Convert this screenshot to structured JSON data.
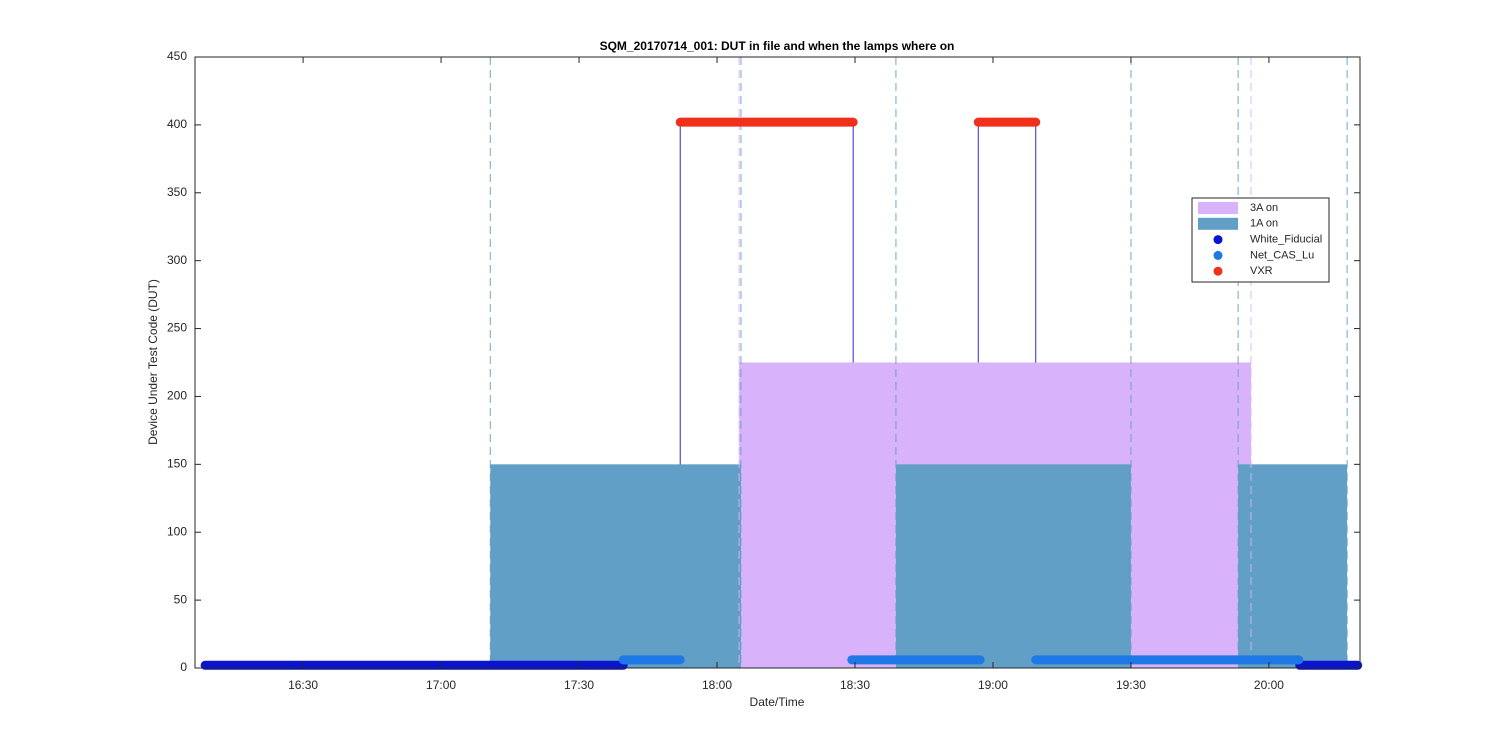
{
  "chart_data": {
    "type": "area",
    "title": "SQM_20170714_001: DUT in file and when the lamps where on",
    "x_label": "Date/Time",
    "y_label": "Device Under Test Code (DUT)",
    "xlim": [
      966.5,
      1219.8
    ],
    "xticks": [
      {
        "value": 990,
        "label": "16:30"
      },
      {
        "value": 1020,
        "label": "17:00"
      },
      {
        "value": 1050,
        "label": "17:30"
      },
      {
        "value": 1080,
        "label": "18:00"
      },
      {
        "value": 1110,
        "label": "18:30"
      },
      {
        "value": 1140,
        "label": "19:00"
      },
      {
        "value": 1170,
        "label": "19:30"
      },
      {
        "value": 1200,
        "label": "20:00"
      }
    ],
    "ylim": [
      0,
      450
    ],
    "yticks": [
      0,
      50,
      100,
      150,
      200,
      250,
      300,
      350,
      400,
      450
    ],
    "legend": "northeast",
    "series": [
      {
        "name": "3A on",
        "style": "shade",
        "color": "#d8b3fc",
        "level": 225,
        "intervals": [
          [
            1084.8,
            1196.1
          ]
        ]
      },
      {
        "name": "1A on",
        "style": "shade",
        "color": "#629fc7",
        "level": 150,
        "intervals": [
          [
            1030.7,
            1085.2
          ],
          [
            1118.9,
            1170
          ],
          [
            1193.3,
            1217
          ]
        ]
      },
      {
        "name": "White_Fiducial",
        "style": "dots",
        "color": "#0a14d0",
        "level": 2,
        "intervals": [
          [
            968.7,
            1059.6
          ],
          [
            1206.7,
            1219.3
          ]
        ]
      },
      {
        "name": "Net_CAS_Lu",
        "style": "dots",
        "color": "#1e78e6",
        "level": 6,
        "intervals": [
          [
            1059.6,
            1072
          ],
          [
            1109.3,
            1137.2
          ],
          [
            1149.3,
            1206.5
          ]
        ]
      },
      {
        "name": "VXR",
        "style": "dots",
        "color": "#f0301a",
        "level": 402,
        "intervals": [
          [
            1072,
            1109.6
          ],
          [
            1136.8,
            1149.3
          ]
        ]
      }
    ]
  }
}
